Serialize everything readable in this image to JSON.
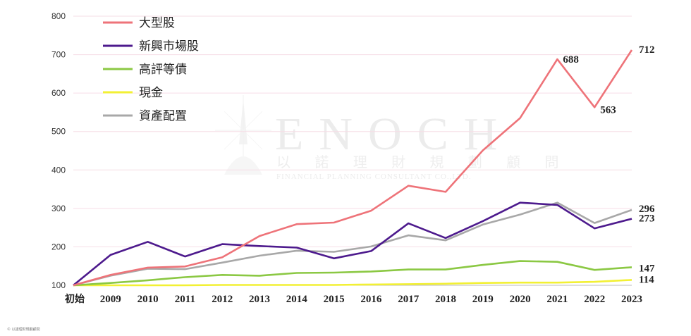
{
  "chart_data": {
    "type": "line",
    "categories": [
      "初始",
      "2009",
      "2010",
      "2011",
      "2012",
      "2013",
      "2014",
      "2015",
      "2016",
      "2017",
      "2018",
      "2019",
      "2020",
      "2021",
      "2022",
      "2023"
    ],
    "ylim": [
      100,
      800
    ],
    "yticks": [
      100,
      200,
      300,
      400,
      500,
      600,
      700,
      800
    ],
    "grid": true,
    "legend_position": "top-left",
    "series": [
      {
        "name": "大型股",
        "color": "#ee7379",
        "values": [
          100,
          127,
          146,
          149,
          173,
          228,
          259,
          263,
          294,
          359,
          343,
          451,
          535,
          688,
          563,
          712
        ],
        "end_label": "712",
        "annotations": [
          {
            "index": 13,
            "text": "688"
          },
          {
            "index": 14,
            "text": "563"
          }
        ]
      },
      {
        "name": "新興市場股",
        "color": "#4d1a8d",
        "values": [
          100,
          179,
          213,
          175,
          207,
          202,
          198,
          170,
          189,
          261,
          223,
          267,
          315,
          309,
          248,
          273
        ],
        "end_label": "273"
      },
      {
        "name": "高評等債",
        "color": "#8bc843",
        "values": [
          100,
          106,
          113,
          121,
          127,
          125,
          132,
          133,
          136,
          141,
          141,
          153,
          163,
          161,
          140,
          147
        ],
        "end_label": "147"
      },
      {
        "name": "現金",
        "color": "#f2f034",
        "values": [
          100,
          100,
          100,
          100,
          101,
          101,
          101,
          101,
          102,
          103,
          104,
          106,
          107,
          107,
          109,
          114
        ],
        "end_label": "114"
      },
      {
        "name": "資產配置",
        "color": "#a8a8a8",
        "values": [
          100,
          125,
          143,
          142,
          159,
          177,
          190,
          187,
          201,
          230,
          217,
          258,
          284,
          315,
          262,
          296
        ],
        "end_label": "296"
      }
    ]
  },
  "watermark": {
    "title": "ENOCH",
    "subtitle": "以 諾 理 財 規 劃 顧 問",
    "english": "FINANCIAL PLANNING CONSULTANT CO.,LTD."
  },
  "copyright": "© 以諾理財規劃顧問"
}
